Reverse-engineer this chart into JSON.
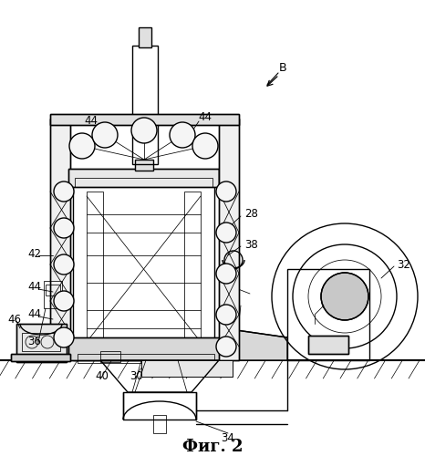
{
  "bg_color": "#ffffff",
  "line_color": "#000000",
  "figure_label": "Фиг. 2",
  "label_B": "B",
  "lw_main": 1.0,
  "lw_thin": 0.55,
  "lw_thick": 1.5
}
